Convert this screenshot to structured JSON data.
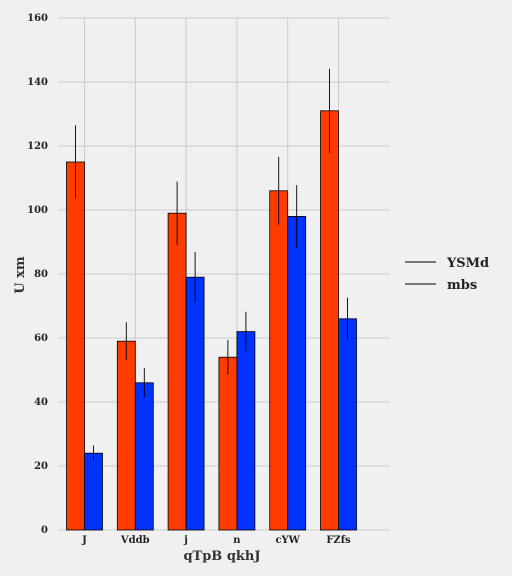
{
  "chart_data": {
    "type": "bar",
    "xlabel": "qTpB   qkhJ",
    "ylabel": "U xm",
    "categories": [
      "J",
      "Vddb",
      "j",
      "n",
      "cYW",
      "FZfs"
    ],
    "ylim": [
      0,
      160
    ],
    "yticks": [
      0,
      20,
      40,
      60,
      80,
      100,
      120,
      140,
      160
    ],
    "grid": true,
    "legend_position": "right",
    "series": [
      {
        "name": "YSMd",
        "color": "#ff3c00",
        "values": [
          115,
          59,
          99,
          54,
          106,
          131
        ],
        "errors": [
          11.5,
          5.9,
          9.9,
          5.4,
          10.6,
          13.1
        ]
      },
      {
        "name": "mbs",
        "color": "#0033ff",
        "values": [
          24,
          46,
          79,
          62,
          98,
          66
        ],
        "errors": [
          2.4,
          4.6,
          7.9,
          6.2,
          9.8,
          6.6
        ]
      }
    ]
  }
}
